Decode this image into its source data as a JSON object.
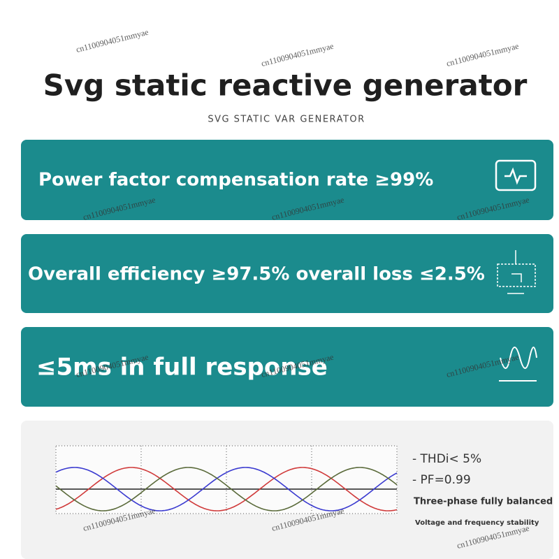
{
  "header": {
    "title": "Svg static reactive generator",
    "subtitle": "SVG STATIC VAR GENERATOR"
  },
  "features": [
    "Power factor compensation rate ≥99%",
    "Overall efficiency ≥97.5% overall loss ≤2.5%",
    "≤5ms in full response"
  ],
  "specs": {
    "items": [
      "-  THDi< 5%",
      "-  PF=0.99"
    ],
    "line1": "Three-phase fully balanced",
    "line2": "Voltage and frequency stability"
  },
  "watermark": "cn1100904051mmyae"
}
